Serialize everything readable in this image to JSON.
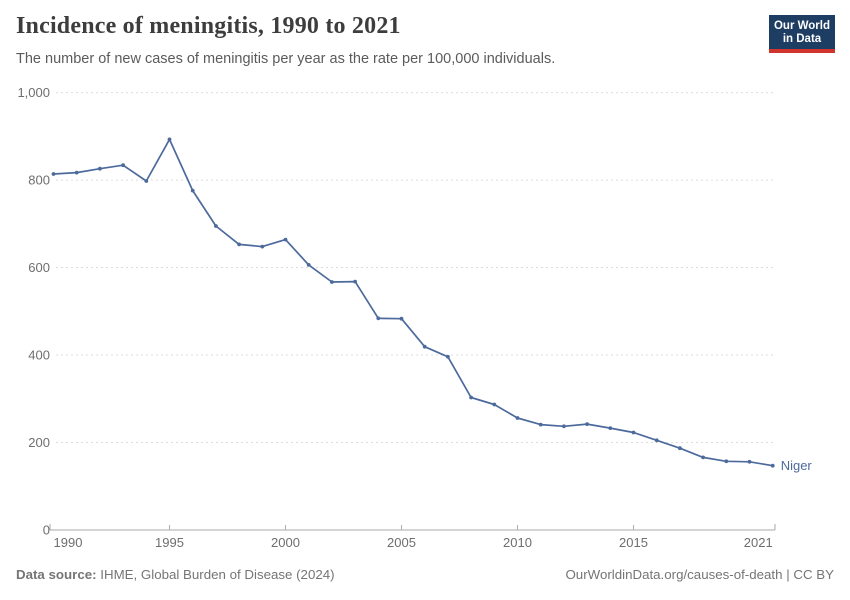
{
  "header": {
    "title": "Incidence of meningitis, 1990 to 2021",
    "subtitle": "The number of new cases of meningitis per year as the rate per 100,000 individuals."
  },
  "logo": {
    "line1": "Our World",
    "line2": "in Data"
  },
  "chart_data": {
    "type": "line",
    "title": "Incidence of meningitis, 1990 to 2021",
    "xlabel": "",
    "ylabel": "",
    "xlim": [
      1990,
      2021
    ],
    "ylim": [
      0,
      1000
    ],
    "grid": "horizontal-dashed",
    "legend_position": "end-of-line-label",
    "x_ticks": [
      1990,
      1995,
      2000,
      2005,
      2010,
      2015,
      2021
    ],
    "y_ticks": [
      0,
      200,
      400,
      600,
      800,
      1000
    ],
    "y_tick_labels": [
      "0",
      "200",
      "400",
      "600",
      "800",
      "1,000"
    ],
    "x": [
      1990,
      1991,
      1992,
      1993,
      1994,
      1995,
      1996,
      1997,
      1998,
      1999,
      2000,
      2001,
      2002,
      2003,
      2004,
      2005,
      2006,
      2007,
      2008,
      2009,
      2010,
      2011,
      2012,
      2013,
      2014,
      2015,
      2016,
      2017,
      2018,
      2019,
      2020,
      2021
    ],
    "series": [
      {
        "name": "Niger",
        "color": "#4c6a9c",
        "values": [
          814,
          817,
          826,
          834,
          798,
          893,
          776,
          695,
          653,
          648,
          664,
          606,
          567,
          568,
          484,
          483,
          419,
          396,
          303,
          287,
          256,
          241,
          237,
          242,
          233,
          223,
          205,
          187,
          166,
          157,
          156,
          147
        ]
      }
    ]
  },
  "colors": {
    "line": "#4c6a9c",
    "gridline": "#dcdcdc",
    "axis": "#a8a8a8",
    "tick": "#b0b0b0",
    "tick_label": "#6e6e6e",
    "logo_bg": "#1d3d63",
    "logo_red": "#d0342c"
  },
  "footer": {
    "source_label": "Data source:",
    "source_text": "IHME, Global Burden of Disease (2024)",
    "link": "OurWorldinData.org/causes-of-death | CC BY"
  }
}
